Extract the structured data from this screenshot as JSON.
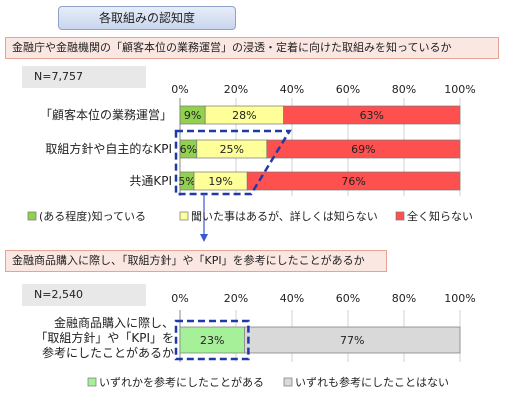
{
  "header": {
    "title": "各取組みの認知度"
  },
  "section1": {
    "question": "金融庁や金融機関の「顧客本位の業務運営」の浸透・定着に向けた取組みを知っているか",
    "sample": "N=7,757"
  },
  "section2": {
    "question": "金融商品購入に際し、「取組方針」や「KPI」を参考にしたことがあるか",
    "sample": "N=2,540"
  },
  "chart_data": [
    {
      "type": "bar",
      "orientation": "horizontal",
      "stacked": true,
      "categories": [
        "「顧客本位の業務運営」",
        "取組方針や自主的なKPI",
        "共通KPI"
      ],
      "series": [
        {
          "name": "(ある程度)知っている",
          "values": [
            9,
            6,
            5
          ],
          "labels": [
            "9%",
            "6%",
            "5%"
          ],
          "color": "#92d050"
        },
        {
          "name": "聞いた事はあるが、詳しくは知らない",
          "values": [
            28,
            25,
            19
          ],
          "labels": [
            "28%",
            "25%",
            "19%"
          ],
          "color": "#ffff99"
        },
        {
          "name": "全く知らない",
          "values": [
            63,
            69,
            76
          ],
          "labels": [
            "63%",
            "69%",
            "76%"
          ],
          "color": "#ff5050"
        }
      ],
      "xlim": [
        0,
        100
      ],
      "ticks": [
        "0%",
        "20%",
        "40%",
        "60%",
        "80%",
        "100%"
      ],
      "legend_position": "bottom",
      "grid": true
    },
    {
      "type": "bar",
      "orientation": "horizontal",
      "stacked": true,
      "categories": [
        "金融商品購入に際し、「取組方針」や「KPI」を参考にしたことがあるか"
      ],
      "category_lines": [
        "金融商品購入に際し、",
        "「取組方針」や「KPI」を",
        "参考にしたことがあるか"
      ],
      "series": [
        {
          "name": "いずれかを参考にしたことがある",
          "values": [
            23
          ],
          "labels": [
            "23%"
          ],
          "color": "#a6f09a"
        },
        {
          "name": "いずれも参考にしたことはない",
          "values": [
            77
          ],
          "labels": [
            "77%"
          ],
          "color": "#d9d9d9"
        }
      ],
      "xlim": [
        0,
        100
      ],
      "ticks": [
        "0%",
        "20%",
        "40%",
        "60%",
        "80%",
        "100%"
      ],
      "legend_position": "bottom",
      "grid": true
    }
  ]
}
